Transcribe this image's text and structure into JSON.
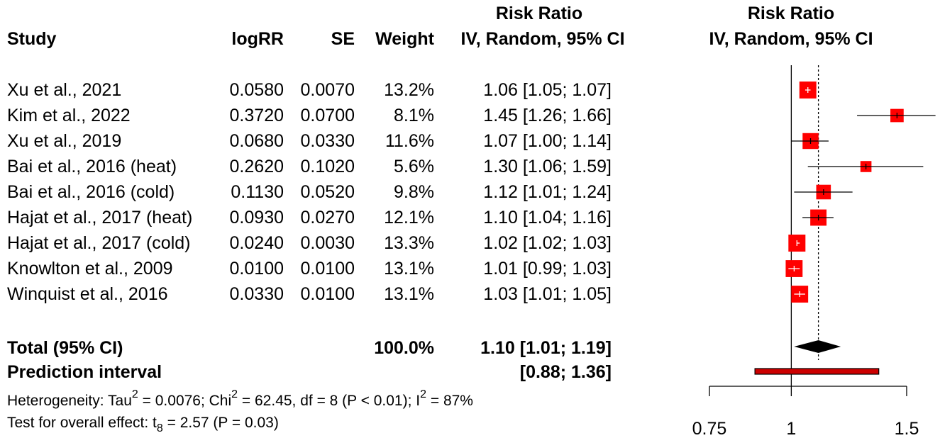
{
  "headers": {
    "study": "Study",
    "logrr": "logRR",
    "se": "SE",
    "weight": "Weight",
    "rr_top": "Risk Ratio",
    "rr_bottom": "IV, Random, 95% CI",
    "plot_top": "Risk Ratio",
    "plot_bottom": "IV, Random, 95% CI"
  },
  "studies": [
    {
      "name": "Xu et al., 2021",
      "logrr": "0.0580",
      "se": "0.0070",
      "weight": "13.2%",
      "ci_text": "1.06 [1.05; 1.07]"
    },
    {
      "name": "Kim et al., 2022",
      "logrr": "0.3720",
      "se": "0.0700",
      "weight": "8.1%",
      "ci_text": "1.45 [1.26; 1.66]"
    },
    {
      "name": "Xu et al., 2019",
      "logrr": "0.0680",
      "se": "0.0330",
      "weight": "11.6%",
      "ci_text": "1.07 [1.00; 1.14]"
    },
    {
      "name": "Bai et al., 2016 (heat)",
      "logrr": "0.2620",
      "se": "0.1020",
      "weight": "5.6%",
      "ci_text": "1.30 [1.06; 1.59]"
    },
    {
      "name": "Bai et al., 2016 (cold)",
      "logrr": "0.1130",
      "se": "0.0520",
      "weight": "9.8%",
      "ci_text": "1.12 [1.01; 1.24]"
    },
    {
      "name": "Hajat et al., 2017 (heat)",
      "logrr": "0.0930",
      "se": "0.0270",
      "weight": "12.1%",
      "ci_text": "1.10 [1.04; 1.16]"
    },
    {
      "name": "Hajat et al., 2017 (cold)",
      "logrr": "0.0240",
      "se": "0.0030",
      "weight": "13.3%",
      "ci_text": "1.02 [1.02; 1.03]"
    },
    {
      "name": "Knowlton et al., 2009",
      "logrr": "0.0100",
      "se": "0.0100",
      "weight": "13.1%",
      "ci_text": "1.01 [0.99; 1.03]"
    },
    {
      "name": "Winquist et al., 2016",
      "logrr": "0.0330",
      "se": "0.0100",
      "weight": "13.1%",
      "ci_text": "1.03 [1.01; 1.05]"
    }
  ],
  "total": {
    "label": "Total (95% CI)",
    "weight": "100.0%",
    "ci_text": "1.10 [1.01; 1.19]"
  },
  "prediction": {
    "label": "Prediction interval",
    "ci_text": "[0.88; 1.36]"
  },
  "footer": {
    "het_a": "Heterogeneity: Tau",
    "het_sup1": "2",
    "het_b": " = 0.0076; Chi",
    "het_sup2": "2",
    "het_c": " = 62.45, df = 8 (P < 0.01); I",
    "het_sup3": "2",
    "het_d": " = 87%",
    "test_a": "Test for overall effect: t",
    "test_sub": "8",
    "test_b": " = 2.57 (P = 0.03)"
  },
  "colors": {
    "box": "#ff0000",
    "diamond": "#000000",
    "prediction_fill": "#cc0000"
  },
  "chart_data": {
    "type": "forest",
    "scale": "log",
    "xlim": [
      0.75,
      1.5
    ],
    "ticks": [
      0.75,
      1,
      1.5
    ],
    "tick_labels": [
      "0.75",
      "1",
      "1.5"
    ],
    "null_line": 1,
    "pooled_line": 1.1,
    "studies": [
      {
        "rr": 1.06,
        "lo": 1.05,
        "hi": 1.07,
        "weight": 13.2
      },
      {
        "rr": 1.45,
        "lo": 1.26,
        "hi": 1.66,
        "weight": 8.1
      },
      {
        "rr": 1.07,
        "lo": 1.0,
        "hi": 1.14,
        "weight": 11.6
      },
      {
        "rr": 1.3,
        "lo": 1.06,
        "hi": 1.59,
        "weight": 5.6
      },
      {
        "rr": 1.12,
        "lo": 1.01,
        "hi": 1.24,
        "weight": 9.8
      },
      {
        "rr": 1.1,
        "lo": 1.04,
        "hi": 1.16,
        "weight": 12.1
      },
      {
        "rr": 1.02,
        "lo": 1.02,
        "hi": 1.03,
        "weight": 13.3
      },
      {
        "rr": 1.01,
        "lo": 0.99,
        "hi": 1.03,
        "weight": 13.1
      },
      {
        "rr": 1.03,
        "lo": 1.01,
        "hi": 1.05,
        "weight": 13.1
      }
    ],
    "pooled": {
      "rr": 1.1,
      "lo": 1.01,
      "hi": 1.19
    },
    "prediction": {
      "lo": 0.88,
      "hi": 1.36
    }
  }
}
